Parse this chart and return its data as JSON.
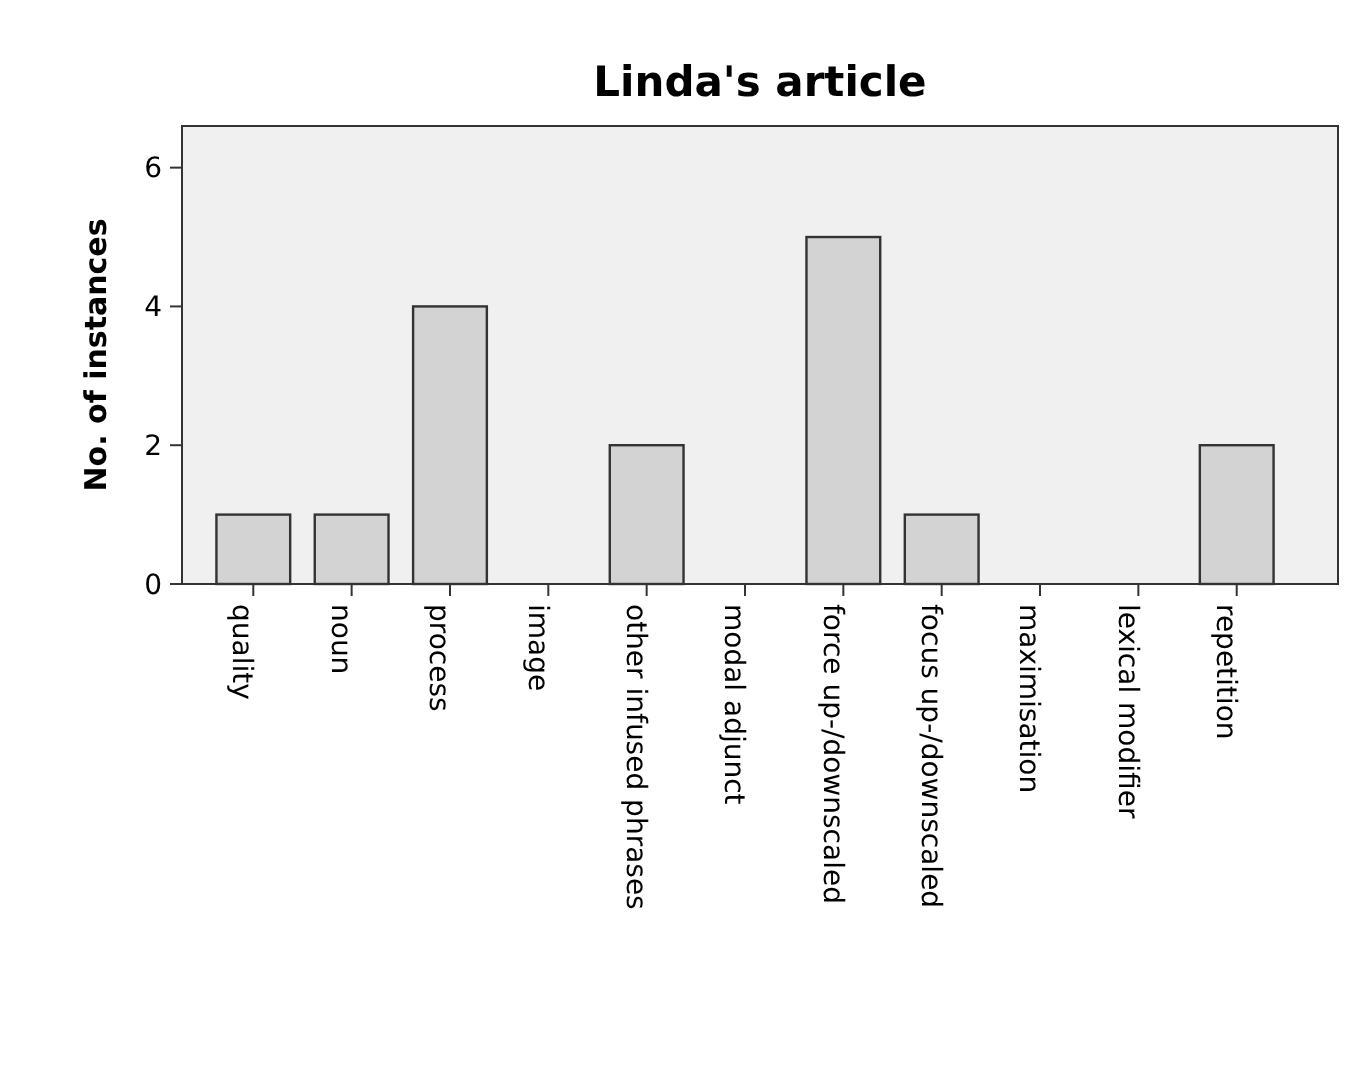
{
  "chart_data": {
    "type": "bar",
    "title": "Linda's article",
    "ylabel": "No. of instances",
    "categories": [
      "quality",
      "noun",
      "process",
      "image",
      "other infused phrases",
      "modal adjunct",
      "force up-/downscaled",
      "focus up-/downscaled",
      "maximisation",
      "lexical modifier",
      "repetition"
    ],
    "values": [
      1,
      1,
      4,
      0,
      2,
      0,
      5,
      1,
      0,
      0,
      2
    ],
    "color": "#d3d3d3",
    "ylim": [
      0,
      6.6
    ],
    "yticks": [
      0,
      2,
      4,
      6
    ],
    "grid": false
  }
}
